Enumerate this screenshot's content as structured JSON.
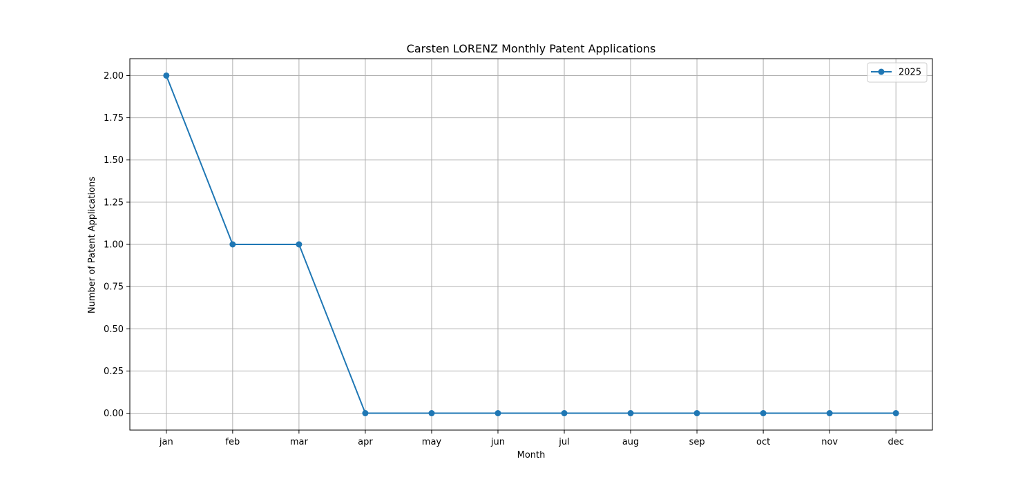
{
  "chart_data": {
    "type": "line",
    "title": "Carsten LORENZ Monthly Patent Applications",
    "xlabel": "Month",
    "ylabel": "Number of Patent Applications",
    "categories": [
      "jan",
      "feb",
      "mar",
      "apr",
      "may",
      "jun",
      "jul",
      "aug",
      "sep",
      "oct",
      "nov",
      "dec"
    ],
    "series": [
      {
        "name": "2025",
        "values": [
          2,
          1,
          1,
          0,
          0,
          0,
          0,
          0,
          0,
          0,
          0,
          0
        ],
        "color": "#1f77b4",
        "marker": "circle"
      }
    ],
    "ylim": [
      -0.1,
      2.1
    ],
    "yticks": [
      "0.00",
      "0.25",
      "0.50",
      "0.75",
      "1.00",
      "1.25",
      "1.50",
      "1.75",
      "2.00"
    ],
    "grid": true,
    "legend_position": "top-right"
  }
}
